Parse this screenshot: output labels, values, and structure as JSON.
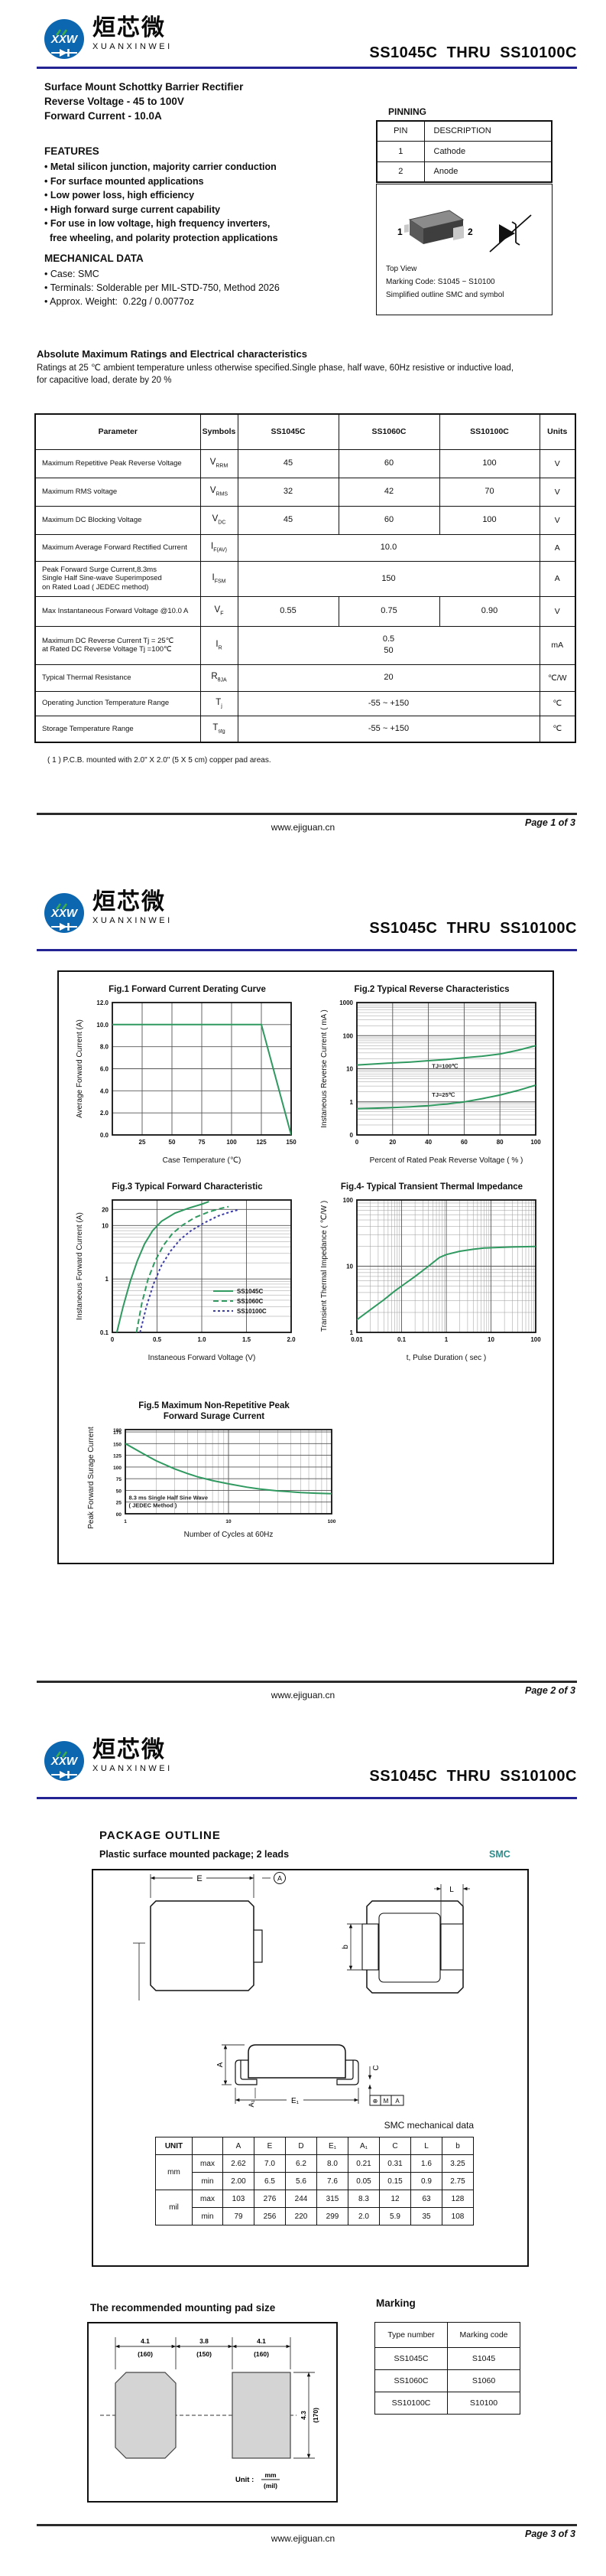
{
  "header": {
    "title": "SS1045C  THRU  SS10100C",
    "monogram": "XXW",
    "brand_cn": "烜芯微",
    "brand_en": "XUANXINWEI",
    "accent_color": "#232394"
  },
  "footers": [
    {
      "site": "www.ejiguan.cn",
      "page": "Page 1 of 3"
    },
    {
      "site": "www.ejiguan.cn",
      "page": "Page 2 of 3"
    },
    {
      "site": "www.ejiguan.cn",
      "page": "Page 3 of 3"
    }
  ],
  "page1": {
    "intro_lines": [
      "Surface Mount Schottky Barrier Rectifier",
      "Reverse Voltage - 45 to 100V",
      "Forward Current - 10.0A"
    ],
    "features_heading": "FEATURES",
    "features": [
      "• Metal silicon junction, majority carrier conduction",
      "• For surface mounted applications",
      "• Low power loss, high efficiency",
      "• High forward surge current capability",
      "• For use in low voltage, high frequency inverters,",
      "  free wheeling, and polarity protection applications"
    ],
    "mechanical_heading": "MECHANICAL DATA",
    "mechanical": [
      "• Case: SMC",
      "• Terminals: Solderable per MIL-STD-750, Method 2026",
      "• Approx. Weight:  0.22g / 0.0077oz"
    ],
    "pinning": {
      "heading": "PINNING",
      "headers": [
        "PIN",
        "DESCRIPTION"
      ],
      "rows": [
        [
          "1",
          "Cathode"
        ],
        [
          "2",
          "Anode"
        ]
      ]
    },
    "package_box": {
      "pin1": "1",
      "pin2": "2",
      "line1": "Top View",
      "line2": "Marking Code:   S1045 ~ S10100",
      "line3": "Simplified outline SMC and symbol"
    },
    "ratings_heading": "Absolute Maximum Ratings and Electrical characteristics",
    "ratings_note": "Ratings at 25 ℃ ambient temperature unless otherwise specified.Single phase, half wave, 60Hz resistive or inductive load,\nfor capacitive load, derate by 20 %",
    "table": {
      "headers": [
        "Parameter",
        "Symbols",
        "SS1045C",
        "SS1060C",
        "SS10100C",
        "Units"
      ],
      "rows": [
        {
          "h": 37,
          "param": "Maximum Repetitive Peak Reverse Voltage",
          "sym": "V",
          "sub": "RRM",
          "v": [
            "45",
            "60",
            "100"
          ],
          "unit": "V"
        },
        {
          "h": 37,
          "param": "Maximum RMS voltage",
          "sym": "V",
          "sub": "RMS",
          "v": [
            "32",
            "42",
            "70"
          ],
          "unit": "V"
        },
        {
          "h": 37,
          "param": "Maximum DC Blocking Voltage",
          "sym": "V",
          "sub": "DC",
          "v": [
            "45",
            "60",
            "100"
          ],
          "unit": "V"
        },
        {
          "h": 35,
          "param": "Maximum Average Forward Rectified Current",
          "sym": "I",
          "sub": "F(AV)",
          "span": "10.0",
          "unit": "A"
        },
        {
          "h": 46,
          "param": "Peak Forward Surge Current,8.3ms\nSingle Half Sine-wave Superimposed\non Rated Load ( JEDEC method)",
          "sym": "I",
          "sub": "FSM",
          "span": "150",
          "unit": "A"
        },
        {
          "h": 39,
          "param": "Max Instantaneous Forward Voltage @10.0 A",
          "sym": "V",
          "sub": "F",
          "v": [
            "0.55",
            "0.75",
            "0.90"
          ],
          "unit": "V"
        },
        {
          "h": 50,
          "param": "Maximum DC Reverse Current   Tj = 25℃\nat Rated DC Reverse Voltage    Tj =100℃",
          "sym": "I",
          "sub": "R",
          "span": "0.5\n50",
          "unit": "mA"
        },
        {
          "h": 35,
          "param": "Typical Thermal Resistance",
          "sym": "R",
          "sub": "θJA",
          "span": "20",
          "unit": "℃/W"
        },
        {
          "h": 32,
          "param": "Operating Junction Temperature Range",
          "sym": "T",
          "sub": "j",
          "span": "-55 ~ +150",
          "unit": "℃"
        },
        {
          "h": 35,
          "param": "Storage Temperature Range",
          "sym": "T",
          "sub": "stg",
          "span": "-55 ~ +150",
          "unit": "℃"
        }
      ]
    },
    "footnote": "( 1 ) P.C.B. mounted with 2.0\" X 2.0\" (5 X 5 cm) copper pad areas."
  },
  "chart_data": [
    {
      "id": "fig1",
      "type": "line",
      "title": "Fig.1  Forward Current Derating Curve",
      "xlabel": "Case Temperature (℃)",
      "ylabel": "Average Forward Current (A)",
      "x": {
        "scale": "linear",
        "min": 0,
        "max": 150,
        "ticks": [
          25,
          50,
          75,
          100,
          125,
          150
        ],
        "labels": [
          "25",
          "50",
          "75",
          "100",
          "125",
          "150"
        ]
      },
      "y": {
        "scale": "linear",
        "min": 0,
        "max": 12,
        "ticks": [
          0,
          2,
          4,
          6,
          8,
          10,
          12
        ],
        "labels": [
          "0.0",
          "2.0",
          "4.0",
          "6.0",
          "8.0",
          "10.0",
          "12.0"
        ]
      },
      "series": [
        {
          "name": "derating",
          "color": "#2f9960",
          "dash": "",
          "points": [
            [
              0,
              10
            ],
            [
              125,
              10
            ],
            [
              150,
              0
            ]
          ]
        }
      ]
    },
    {
      "id": "fig2",
      "type": "line",
      "title": "Fig.2  Typical Reverse Characteristics",
      "xlabel": "Percent of Rated Peak Reverse Voltage ( % )",
      "ylabel": "Instaneous Reverse Current ( mA )",
      "x": {
        "scale": "linear",
        "min": 0,
        "max": 100,
        "ticks": [
          0,
          20,
          40,
          60,
          80,
          100
        ],
        "labels": [
          "0",
          "20",
          "40",
          "60",
          "80",
          "100"
        ]
      },
      "y": {
        "scale": "log",
        "min": 0.1,
        "max": 1000,
        "ticks": [
          0.1,
          1,
          10,
          100,
          1000
        ],
        "labels": [
          "0",
          "1",
          "10",
          "100",
          "1000"
        ]
      },
      "series": [
        {
          "name": "TJ=100℃",
          "color": "#2f9960",
          "dash": "",
          "points": [
            [
              0,
              13
            ],
            [
              10,
              14
            ],
            [
              20,
              15
            ],
            [
              30,
              16
            ],
            [
              40,
              17.5
            ],
            [
              50,
              19
            ],
            [
              60,
              21.5
            ],
            [
              70,
              24
            ],
            [
              80,
              28
            ],
            [
              90,
              36
            ],
            [
              100,
              50
            ]
          ]
        },
        {
          "name": "TJ=25℃",
          "color": "#2f9960",
          "dash": "",
          "points": [
            [
              0,
              0.62
            ],
            [
              10,
              0.64
            ],
            [
              20,
              0.67
            ],
            [
              30,
              0.71
            ],
            [
              40,
              0.77
            ],
            [
              50,
              0.86
            ],
            [
              60,
              1.0
            ],
            [
              70,
              1.25
            ],
            [
              80,
              1.6
            ],
            [
              90,
              2.2
            ],
            [
              100,
              3.2
            ]
          ]
        }
      ],
      "annotations": [
        {
          "text": "TJ=100℃",
          "x": 42,
          "y": 10.5
        },
        {
          "text": "TJ=25℃",
          "x": 42,
          "y": 1.45
        }
      ]
    },
    {
      "id": "fig3",
      "type": "line",
      "title": "Fig.3  Typical Forward Characteristic",
      "xlabel": "Instaneous Forward Voltage (V)",
      "ylabel": "Instaneous Forward Current  (A)",
      "x": {
        "scale": "linear",
        "min": 0,
        "max": 2.0,
        "ticks": [
          0,
          0.5,
          1.0,
          1.5,
          2.0
        ],
        "labels": [
          "0",
          "0.5",
          "1.0",
          "1.5",
          "2.0"
        ]
      },
      "y": {
        "scale": "log",
        "min": 0.1,
        "max": 30,
        "ticks": [
          0.1,
          1,
          10,
          20
        ],
        "labels": [
          "0.1",
          "1",
          "10",
          "20"
        ]
      },
      "legend": true,
      "series": [
        {
          "name": "SS1045C",
          "color": "#2f9960",
          "dash": "",
          "points": [
            [
              0.05,
              0.1
            ],
            [
              0.12,
              0.3
            ],
            [
              0.2,
              0.9
            ],
            [
              0.28,
              2.2
            ],
            [
              0.36,
              4.5
            ],
            [
              0.45,
              8
            ],
            [
              0.55,
              12
            ],
            [
              0.7,
              17
            ],
            [
              0.85,
              21
            ],
            [
              1.0,
              25
            ],
            [
              1.08,
              28
            ]
          ]
        },
        {
          "name": "SS1060C",
          "color": "#2f9960",
          "dash": "7,4",
          "points": [
            [
              0.27,
              0.1
            ],
            [
              0.33,
              0.35
            ],
            [
              0.4,
              1.0
            ],
            [
              0.48,
              2.2
            ],
            [
              0.57,
              4.2
            ],
            [
              0.67,
              7
            ],
            [
              0.78,
              10
            ],
            [
              0.92,
              14
            ],
            [
              1.08,
              18
            ],
            [
              1.22,
              21
            ],
            [
              1.3,
              22.5
            ]
          ]
        },
        {
          "name": "SS10100C",
          "color": "#3d3da8",
          "dash": "3,3",
          "points": [
            [
              0.31,
              0.1
            ],
            [
              0.38,
              0.3
            ],
            [
              0.46,
              0.8
            ],
            [
              0.55,
              1.8
            ],
            [
              0.65,
              3.3
            ],
            [
              0.76,
              5.5
            ],
            [
              0.88,
              8
            ],
            [
              1.02,
              11
            ],
            [
              1.18,
              15
            ],
            [
              1.32,
              18
            ],
            [
              1.4,
              19.5
            ]
          ]
        }
      ]
    },
    {
      "id": "fig4",
      "type": "line",
      "title": "Fig.4- Typical Transient Thermal Impedance",
      "xlabel": "t, Pulse Duration ( sec )",
      "ylabel": "Transient Thermal Impedance ( ℃/W )",
      "x": {
        "scale": "log",
        "min": 0.01,
        "max": 100,
        "ticks": [
          0.01,
          0.1,
          1,
          10,
          100
        ],
        "labels": [
          "0.01",
          "0.1",
          "1",
          "10",
          "100"
        ]
      },
      "y": {
        "scale": "log",
        "min": 1,
        "max": 100,
        "ticks": [
          1,
          10,
          100
        ],
        "labels": [
          "1",
          "10",
          "100"
        ]
      },
      "series": [
        {
          "name": "Zth",
          "color": "#2f9960",
          "dash": "",
          "points": [
            [
              0.01,
              1.55
            ],
            [
              0.02,
              2.2
            ],
            [
              0.04,
              3.1
            ],
            [
              0.07,
              4.2
            ],
            [
              0.1,
              5
            ],
            [
              0.2,
              7
            ],
            [
              0.4,
              10
            ],
            [
              0.7,
              13.5
            ],
            [
              1,
              15
            ],
            [
              2,
              16.8
            ],
            [
              4,
              18
            ],
            [
              7,
              18.8
            ],
            [
              10,
              19
            ],
            [
              30,
              19.5
            ],
            [
              100,
              19.8
            ]
          ]
        }
      ]
    },
    {
      "id": "fig5",
      "type": "line",
      "title": "Fig.5  Maximum Non-Repetitive Peak",
      "title2": "Forward Surage Current",
      "xlabel": "Number of Cycles at 60Hz",
      "ylabel": "Peak Forward Surage Current (A)",
      "tick_font": 6.5,
      "x": {
        "scale": "log",
        "min": 1,
        "max": 100,
        "ticks": [
          1,
          10,
          100
        ],
        "labels": [
          "1",
          "10",
          "100"
        ]
      },
      "y": {
        "scale": "linear",
        "min": 0,
        "max": 180,
        "ticks": [
          0,
          25,
          50,
          75,
          100,
          125,
          150,
          175,
          180
        ],
        "labels": [
          "00",
          "25",
          "50",
          "75",
          "100",
          "125",
          "150",
          "175",
          "180"
        ]
      },
      "series": [
        {
          "name": "IFSM",
          "color": "#2f9960",
          "dash": "",
          "points": [
            [
              1,
              150
            ],
            [
              1.5,
              128
            ],
            [
              2,
              113
            ],
            [
              3,
              96
            ],
            [
              4,
              86
            ],
            [
              5,
              79
            ],
            [
              7,
              71
            ],
            [
              10,
              64
            ],
            [
              15,
              57
            ],
            [
              20,
              53
            ],
            [
              30,
              49
            ],
            [
              50,
              45.5
            ],
            [
              70,
              44
            ],
            [
              100,
              43
            ]
          ]
        }
      ],
      "annotations": [
        {
          "text": "8.3 ms Single Half Sine Wave",
          "x": 1.08,
          "y": 30,
          "anchor": "start"
        },
        {
          "text": "( JEDEC Method )",
          "x": 1.08,
          "y": 14,
          "anchor": "start"
        }
      ]
    }
  ],
  "page3": {
    "outline_heading": "PACKAGE  OUTLINE",
    "outline_sub": "Plastic surface mounted package; 2 leads",
    "case_name": "SMC",
    "labels": {
      "E": "E",
      "A_circ": "A",
      "L": "L",
      "b": "b",
      "A": "A",
      "A1": "A₁",
      "C": "C",
      "E1": "E₁"
    },
    "smc_table": {
      "title": "SMC mechanical data",
      "col_headers": [
        "UNIT",
        "",
        "A",
        "E",
        "D",
        "E₁",
        "A₁",
        "C",
        "L",
        "b"
      ],
      "rows": [
        {
          "unit": "mm",
          "limit": "max",
          "vals": [
            "2.62",
            "7.0",
            "6.2",
            "8.0",
            "0.21",
            "0.31",
            "1.6",
            "3.25"
          ]
        },
        {
          "unit": "",
          "limit": "min",
          "vals": [
            "2.00",
            "6.5",
            "5.6",
            "7.6",
            "0.05",
            "0.15",
            "0.9",
            "2.75"
          ]
        },
        {
          "unit": "mil",
          "limit": "max",
          "vals": [
            "103",
            "276",
            "244",
            "315",
            "8.3",
            "12",
            "63",
            "128"
          ]
        },
        {
          "unit": "",
          "limit": "min",
          "vals": [
            "79",
            "256",
            "220",
            "299",
            "2.0",
            "5.9",
            "35",
            "108"
          ]
        }
      ]
    },
    "pad": {
      "heading": "The recommended mounting pad size",
      "dim_left": "4.1",
      "dim_left_mil": "(160)",
      "dim_mid": "3.8",
      "dim_mid_mil": "(150)",
      "dim_right": "4.1",
      "dim_right_mil": "(160)",
      "dim_v": "4.3",
      "dim_v_mil": "(170)",
      "unit_label": "Unit :",
      "unit_top": "mm",
      "unit_bot": "(mil)"
    },
    "marking": {
      "heading": "Marking",
      "headers": [
        "Type number",
        "Marking code"
      ],
      "rows": [
        [
          "SS1045C",
          "S1045"
        ],
        [
          "SS1060C",
          "S1060"
        ],
        [
          "SS10100C",
          "S10100"
        ]
      ]
    }
  }
}
